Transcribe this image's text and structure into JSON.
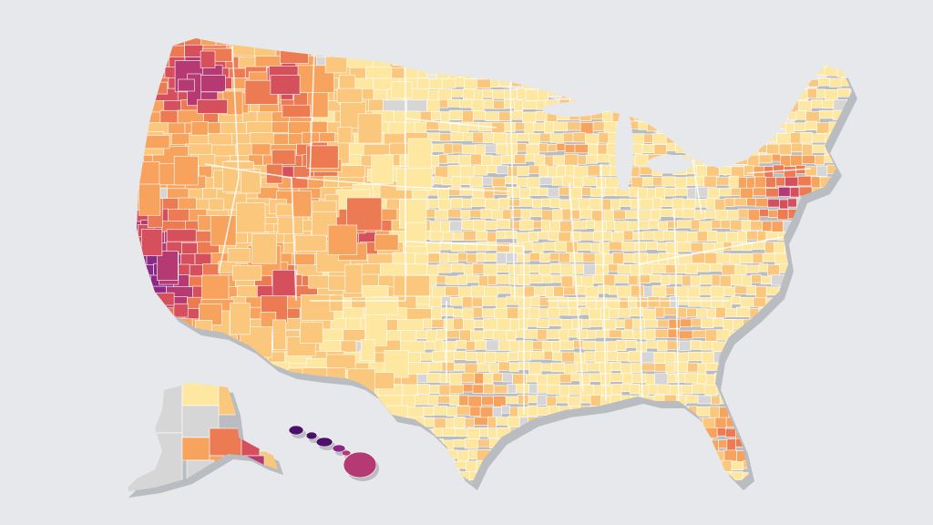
{
  "map": {
    "type": "choropleth",
    "background": "#e6e8eb",
    "border_color": "#ffffff",
    "shadow_color": "#b9bcc0",
    "no_data_color": "#d6d6d6",
    "palette": [
      "#fde7a1",
      "#fbc77c",
      "#f7a35e",
      "#ec7a53",
      "#d64f5d",
      "#b53a73",
      "#8a2a86",
      "#4b1069"
    ],
    "regions": [
      {
        "name": "contiguous-us",
        "description_icon": "us-map-icon"
      },
      {
        "name": "alaska",
        "description_icon": "alaska-map-icon"
      },
      {
        "name": "hawaii",
        "description_icon": "hawaii-map-icon"
      }
    ],
    "legend": null,
    "title": ""
  }
}
